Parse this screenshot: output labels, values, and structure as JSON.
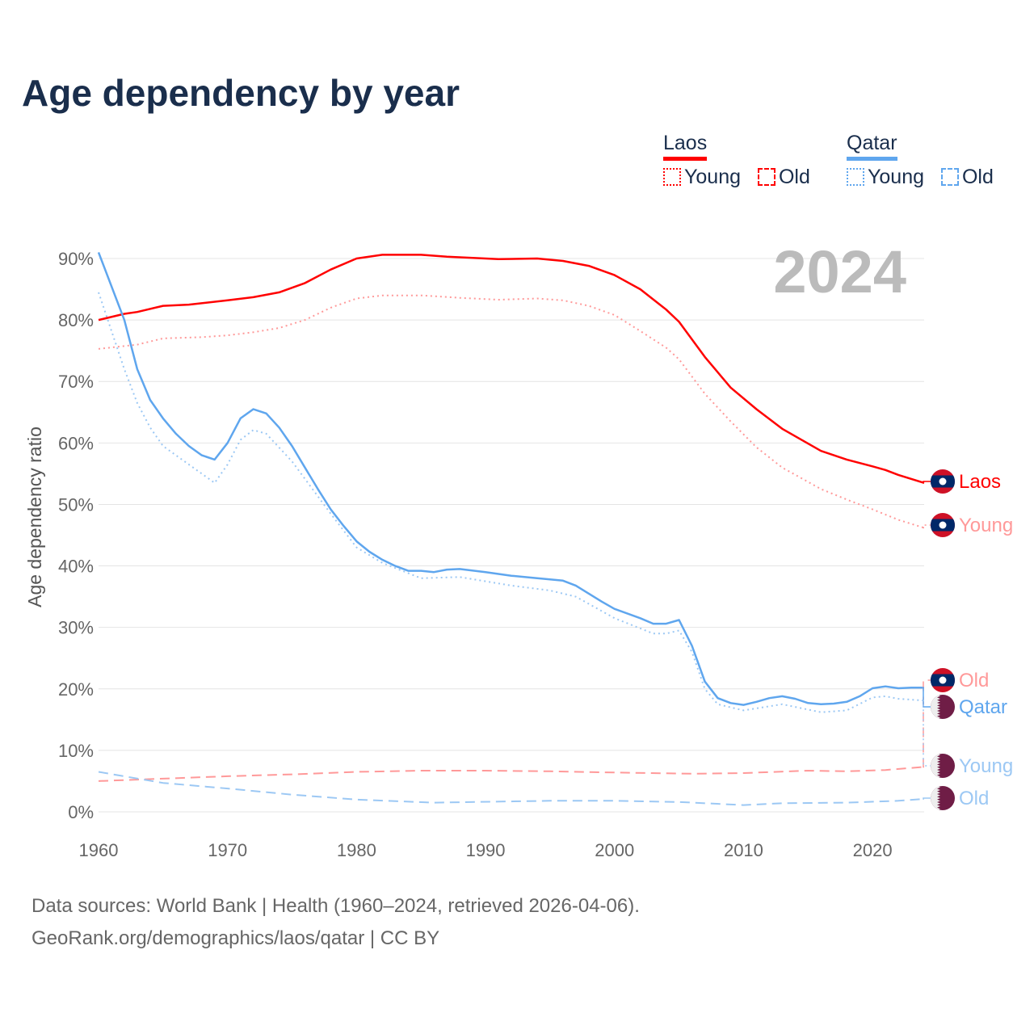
{
  "title": "Age dependency by year",
  "legend": {
    "groups": [
      {
        "name": "Laos",
        "color": "#ff0000",
        "items": [
          "Young",
          "Old"
        ]
      },
      {
        "name": "Qatar",
        "color": "#5fa6ee",
        "items": [
          "Young",
          "Old"
        ]
      }
    ]
  },
  "year_label": "2024",
  "footer": {
    "line1": "Data sources: World Bank | Health (1960–2024, retrieved 2026-04-06).",
    "line2": "GeoRank.org/demographics/laos/qatar | CC BY"
  },
  "chart_data": {
    "type": "line",
    "title": "Age dependency by year",
    "xlabel": "",
    "ylabel": "Age dependency ratio",
    "xlim": [
      1960,
      2024
    ],
    "ylim": [
      0,
      90
    ],
    "xticks": [
      "1960",
      "1970",
      "1980",
      "1990",
      "2000",
      "2010",
      "2020"
    ],
    "yticks": [
      "0%",
      "10%",
      "20%",
      "30%",
      "40%",
      "50%",
      "60%",
      "70%",
      "80%",
      "90%"
    ],
    "grid": true,
    "legend_position": "top-right",
    "series": [
      {
        "name": "Laos",
        "end_label": "Laos",
        "color": "#ff0000",
        "dash": "solid",
        "flag": "laos",
        "points": [
          [
            1960,
            80
          ],
          [
            1962,
            81
          ],
          [
            1963,
            81.3
          ],
          [
            1965,
            82.3
          ],
          [
            1967,
            82.5
          ],
          [
            1970,
            83.2
          ],
          [
            1972,
            83.7
          ],
          [
            1974,
            84.5
          ],
          [
            1976,
            86
          ],
          [
            1978,
            88.2
          ],
          [
            1980,
            90
          ],
          [
            1982,
            90.6
          ],
          [
            1985,
            90.6
          ],
          [
            1987,
            90.3
          ],
          [
            1991,
            89.9
          ],
          [
            1994,
            90
          ],
          [
            1996,
            89.6
          ],
          [
            1998,
            88.8
          ],
          [
            2000,
            87.3
          ],
          [
            2002,
            85
          ],
          [
            2004,
            81.7
          ],
          [
            2005,
            79.7
          ],
          [
            2007,
            74
          ],
          [
            2009,
            69
          ],
          [
            2011,
            65.5
          ],
          [
            2013,
            62.3
          ],
          [
            2016,
            58.7
          ],
          [
            2018,
            57.3
          ],
          [
            2020,
            56.2
          ],
          [
            2021,
            55.6
          ],
          [
            2022,
            54.8
          ],
          [
            2024,
            53.5
          ]
        ]
      },
      {
        "name": "Laos Young",
        "end_label": "Young",
        "color": "#ff9999",
        "dash": "dotted",
        "flag": "laos",
        "points": [
          [
            1960,
            75.3
          ],
          [
            1963,
            76
          ],
          [
            1965,
            77
          ],
          [
            1968,
            77.2
          ],
          [
            1970,
            77.5
          ],
          [
            1972,
            78
          ],
          [
            1974,
            78.7
          ],
          [
            1976,
            80
          ],
          [
            1978,
            82
          ],
          [
            1980,
            83.5
          ],
          [
            1982,
            84
          ],
          [
            1985,
            84
          ],
          [
            1988,
            83.6
          ],
          [
            1991,
            83.3
          ],
          [
            1994,
            83.5
          ],
          [
            1996,
            83.2
          ],
          [
            1998,
            82.3
          ],
          [
            2000,
            80.8
          ],
          [
            2002,
            78.2
          ],
          [
            2004,
            75.5
          ],
          [
            2005,
            73.6
          ],
          [
            2007,
            68
          ],
          [
            2009,
            63.5
          ],
          [
            2011,
            59.3
          ],
          [
            2013,
            56
          ],
          [
            2016,
            52.5
          ],
          [
            2018,
            50.8
          ],
          [
            2020,
            49.2
          ],
          [
            2022,
            47.5
          ],
          [
            2024,
            46.2
          ]
        ]
      },
      {
        "name": "Laos Old",
        "end_label": "Old",
        "color": "#ff9999",
        "dash": "dashed",
        "flag": "laos",
        "points": [
          [
            1960,
            5
          ],
          [
            1965,
            5.4
          ],
          [
            1970,
            5.8
          ],
          [
            1975,
            6.1
          ],
          [
            1980,
            6.5
          ],
          [
            1985,
            6.7
          ],
          [
            1990,
            6.7
          ],
          [
            1995,
            6.6
          ],
          [
            2000,
            6.4
          ],
          [
            2006,
            6.2
          ],
          [
            2010,
            6.3
          ],
          [
            2015,
            6.7
          ],
          [
            2018,
            6.6
          ],
          [
            2021,
            6.8
          ],
          [
            2024,
            7.3
          ]
        ]
      },
      {
        "name": "Qatar",
        "end_label": "Qatar",
        "color": "#5fa6ee",
        "dash": "solid",
        "flag": "qatar",
        "points": [
          [
            1960,
            91
          ],
          [
            1962,
            80
          ],
          [
            1963,
            72
          ],
          [
            1964,
            67
          ],
          [
            1965,
            64
          ],
          [
            1966,
            61.5
          ],
          [
            1967,
            59.5
          ],
          [
            1968,
            58
          ],
          [
            1969,
            57.3
          ],
          [
            1970,
            60
          ],
          [
            1971,
            64
          ],
          [
            1972,
            65.5
          ],
          [
            1973,
            64.8
          ],
          [
            1974,
            62.5
          ],
          [
            1975,
            59.5
          ],
          [
            1976,
            56
          ],
          [
            1977,
            52.5
          ],
          [
            1978,
            49.2
          ],
          [
            1979,
            46.5
          ],
          [
            1980,
            44
          ],
          [
            1981,
            42.3
          ],
          [
            1982,
            41
          ],
          [
            1983,
            40
          ],
          [
            1984,
            39.2
          ],
          [
            1985,
            39.2
          ],
          [
            1986,
            39
          ],
          [
            1987,
            39.4
          ],
          [
            1988,
            39.5
          ],
          [
            1990,
            39
          ],
          [
            1992,
            38.4
          ],
          [
            1994,
            38
          ],
          [
            1996,
            37.6
          ],
          [
            1997,
            36.8
          ],
          [
            1998,
            35.5
          ],
          [
            1999,
            34.2
          ],
          [
            2000,
            33
          ],
          [
            2002,
            31.5
          ],
          [
            2003,
            30.6
          ],
          [
            2004,
            30.6
          ],
          [
            2005,
            31.2
          ],
          [
            2006,
            27
          ],
          [
            2007,
            21.2
          ],
          [
            2008,
            18.5
          ],
          [
            2009,
            17.7
          ],
          [
            2010,
            17.4
          ],
          [
            2011,
            17.9
          ],
          [
            2012,
            18.5
          ],
          [
            2013,
            18.8
          ],
          [
            2014,
            18.4
          ],
          [
            2015,
            17.7
          ],
          [
            2016,
            17.5
          ],
          [
            2017,
            17.6
          ],
          [
            2018,
            17.9
          ],
          [
            2019,
            18.8
          ],
          [
            2020,
            20.1
          ],
          [
            2021,
            20.4
          ],
          [
            2022,
            20.1
          ],
          [
            2023,
            20.2
          ],
          [
            2024,
            20.2
          ]
        ]
      },
      {
        "name": "Qatar Young",
        "end_label": "Young",
        "color": "#9cc8f4",
        "dash": "dotted",
        "flag": "qatar",
        "points": [
          [
            1960,
            84.5
          ],
          [
            1962,
            72
          ],
          [
            1963,
            66.5
          ],
          [
            1964,
            62.5
          ],
          [
            1965,
            59.5
          ],
          [
            1967,
            56.5
          ],
          [
            1969,
            53.5
          ],
          [
            1970,
            56.5
          ],
          [
            1971,
            60.5
          ],
          [
            1972,
            62.1
          ],
          [
            1973,
            61.5
          ],
          [
            1975,
            57
          ],
          [
            1978,
            48.5
          ],
          [
            1980,
            43
          ],
          [
            1982,
            40.5
          ],
          [
            1985,
            38
          ],
          [
            1988,
            38.2
          ],
          [
            1990,
            37.5
          ],
          [
            1992,
            36.8
          ],
          [
            1995,
            36
          ],
          [
            1997,
            35
          ],
          [
            2000,
            31.5
          ],
          [
            2003,
            29
          ],
          [
            2004,
            29
          ],
          [
            2005,
            29.5
          ],
          [
            2006,
            26
          ],
          [
            2007,
            20
          ],
          [
            2008,
            17.5
          ],
          [
            2010,
            16.5
          ],
          [
            2013,
            17.5
          ],
          [
            2016,
            16.2
          ],
          [
            2018,
            16.5
          ],
          [
            2020,
            18.6
          ],
          [
            2021,
            18.8
          ],
          [
            2022,
            18.4
          ],
          [
            2024,
            18.1
          ]
        ]
      },
      {
        "name": "Qatar Old",
        "end_label": "Old",
        "color": "#9cc8f4",
        "dash": "dashed",
        "flag": "qatar",
        "points": [
          [
            1960,
            6.5
          ],
          [
            1965,
            4.7
          ],
          [
            1970,
            3.8
          ],
          [
            1975,
            2.8
          ],
          [
            1980,
            2
          ],
          [
            1986,
            1.5
          ],
          [
            1995,
            1.8
          ],
          [
            2000,
            1.8
          ],
          [
            2005,
            1.6
          ],
          [
            2010,
            1.1
          ],
          [
            2013,
            1.4
          ],
          [
            2018,
            1.5
          ],
          [
            2022,
            1.8
          ],
          [
            2024,
            2.1
          ]
        ]
      }
    ]
  }
}
